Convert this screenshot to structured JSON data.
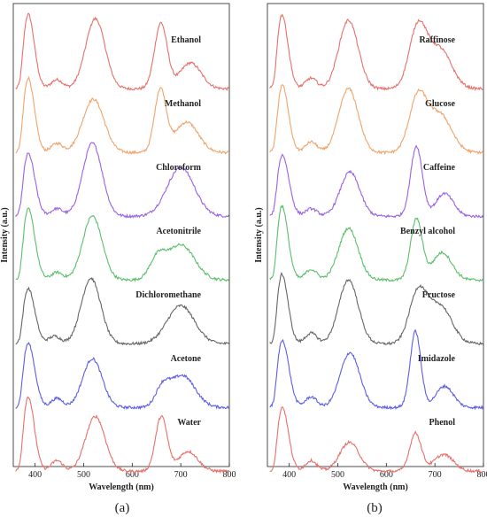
{
  "chart_data": [
    {
      "panel_label": "(a)",
      "type": "line",
      "xlabel": "Wavelength (nm)",
      "ylabel": "Intensity (a.u.)",
      "xlim": [
        355,
        800
      ],
      "xticks": [
        400,
        500,
        600,
        700,
        800
      ],
      "grid": false,
      "series": [
        {
          "name": "Ethanol",
          "color": "#e8706a",
          "peaks": [
            [
              385,
              1.0,
              13
            ],
            [
              445,
              0.12,
              12
            ],
            [
              524,
              0.92,
              20
            ],
            [
              659,
              0.86,
              13
            ],
            [
              720,
              0.34,
              22
            ]
          ]
        },
        {
          "name": "Methanol",
          "color": "#f2a36a",
          "peaks": [
            [
              385,
              1.0,
              13
            ],
            [
              445,
              0.12,
              12
            ],
            [
              520,
              0.7,
              22
            ],
            [
              658,
              0.82,
              12
            ],
            [
              712,
              0.4,
              24
            ]
          ]
        },
        {
          "name": "Chloroform",
          "color": "#9a60e6",
          "peaks": [
            [
              385,
              0.84,
              14
            ],
            [
              445,
              0.1,
              12
            ],
            [
              518,
              0.96,
              20
            ],
            [
              700,
              0.64,
              28
            ]
          ]
        },
        {
          "name": "Acetonitrile",
          "color": "#5bbf6a",
          "peaks": [
            [
              385,
              0.95,
              14
            ],
            [
              445,
              0.1,
              12
            ],
            [
              518,
              0.84,
              20
            ],
            [
              652,
              0.26,
              16
            ],
            [
              700,
              0.46,
              28
            ]
          ]
        },
        {
          "name": "Dichloromethane",
          "color": "#666666",
          "peaks": [
            [
              385,
              0.74,
              14
            ],
            [
              440,
              0.1,
              12
            ],
            [
              515,
              0.86,
              20
            ],
            [
              700,
              0.5,
              28
            ]
          ]
        },
        {
          "name": "Acetone",
          "color": "#5b5ee6",
          "peaks": [
            [
              385,
              0.86,
              14
            ],
            [
              445,
              0.12,
              12
            ],
            [
              518,
              0.64,
              20
            ],
            [
              662,
              0.22,
              14
            ],
            [
              703,
              0.42,
              26
            ]
          ]
        },
        {
          "name": "Water",
          "color": "#e8706a",
          "peaks": [
            [
              385,
              1.0,
              13
            ],
            [
              445,
              0.14,
              12
            ],
            [
              524,
              0.72,
              20
            ],
            [
              660,
              0.72,
              12
            ],
            [
              715,
              0.26,
              20
            ]
          ]
        }
      ]
    },
    {
      "panel_label": "(b)",
      "type": "line",
      "xlabel": "Wavelength (nm)",
      "ylabel": "Intensity (a.u.)",
      "xlim": [
        355,
        800
      ],
      "xticks": [
        400,
        500,
        600,
        700,
        800
      ],
      "grid": false,
      "series": [
        {
          "name": "Raffinose",
          "color": "#e8706a",
          "peaks": [
            [
              384,
              1.0,
              13
            ],
            [
              445,
              0.14,
              12
            ],
            [
              522,
              0.9,
              20
            ],
            [
              665,
              0.8,
              18
            ],
            [
              710,
              0.52,
              24
            ]
          ]
        },
        {
          "name": "Glucose",
          "color": "#f2a36a",
          "peaks": [
            [
              385,
              0.9,
              13
            ],
            [
              445,
              0.14,
              12
            ],
            [
              522,
              0.84,
              20
            ],
            [
              665,
              0.72,
              18
            ],
            [
              710,
              0.5,
              24
            ]
          ]
        },
        {
          "name": "Caffeine",
          "color": "#9a60e6",
          "peaks": [
            [
              385,
              0.82,
              14
            ],
            [
              445,
              0.1,
              12
            ],
            [
              525,
              0.58,
              20
            ],
            [
              662,
              0.92,
              12
            ],
            [
              720,
              0.3,
              18
            ]
          ]
        },
        {
          "name": "Benzyl alcohol",
          "color": "#5bbf6a",
          "peaks": [
            [
              384,
              1.0,
              13
            ],
            [
              445,
              0.14,
              12
            ],
            [
              522,
              0.68,
              20
            ],
            [
              662,
              0.8,
              12
            ],
            [
              715,
              0.36,
              20
            ]
          ]
        },
        {
          "name": "Fructose",
          "color": "#666666",
          "peaks": [
            [
              384,
              0.94,
              13
            ],
            [
              445,
              0.14,
              12
            ],
            [
              522,
              0.84,
              20
            ],
            [
              665,
              0.66,
              18
            ],
            [
              710,
              0.5,
              24
            ]
          ]
        },
        {
          "name": "Imidazole",
          "color": "#5b5ee6",
          "peaks": [
            [
              385,
              0.9,
              14
            ],
            [
              445,
              0.14,
              12
            ],
            [
              525,
              0.72,
              20
            ],
            [
              660,
              1.0,
              11
            ],
            [
              720,
              0.28,
              18
            ]
          ]
        },
        {
          "name": "Phenol",
          "color": "#e8706a",
          "peaks": [
            [
              385,
              0.86,
              13
            ],
            [
              445,
              0.14,
              12
            ],
            [
              524,
              0.38,
              20
            ],
            [
              660,
              0.5,
              12
            ],
            [
              718,
              0.22,
              20
            ]
          ]
        }
      ]
    }
  ]
}
